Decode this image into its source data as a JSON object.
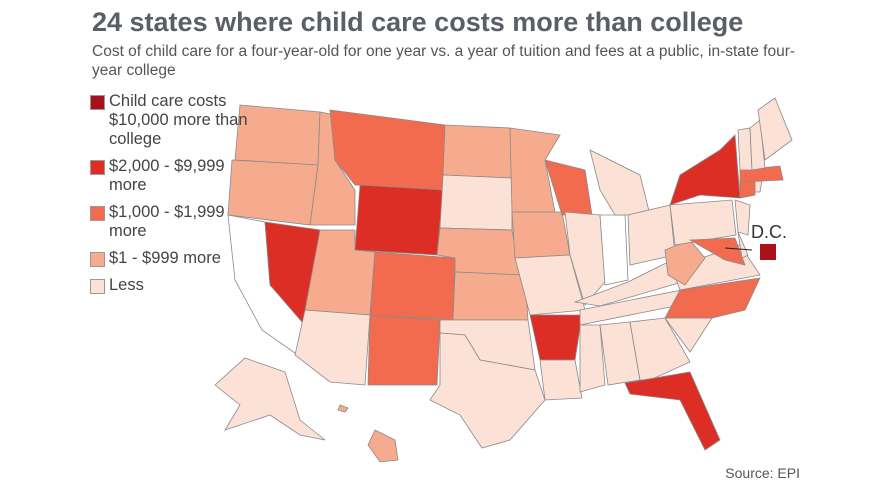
{
  "title": "24 states where child care costs more than college",
  "subtitle": "Cost of child care for a four-year-old for one year vs. a year of tuition and fees at a public, in-state four-year college",
  "legend": [
    {
      "id": "c4",
      "label": "Child care costs $10,000 more than college",
      "color": "#a8101a"
    },
    {
      "id": "c3",
      "label": "$2,000 - $9,999 more",
      "color": "#dd2e26"
    },
    {
      "id": "c2",
      "label": "$1,000 - $1,999 more",
      "color": "#f26b4f"
    },
    {
      "id": "c1",
      "label": "$1 - $999 more",
      "color": "#f6ab8e"
    },
    {
      "id": "c0",
      "label": "Less",
      "color": "#fce1d7"
    }
  ],
  "no_data_color": "#ffffff",
  "dc_label": "D.C.",
  "source": "Source: EPI",
  "states": {
    "DC": "c4",
    "NV": "c3",
    "WY": "c3",
    "NY": "c3",
    "AR": "c3",
    "FL": "c3",
    "MT": "c2",
    "CO": "c2",
    "NM": "c2",
    "WI": "c2",
    "NC": "c2",
    "MA": "c2",
    "CT": "c2",
    "MD": "c2",
    "WA": "c1",
    "OR": "c1",
    "ID": "c1",
    "UT": "c1",
    "ND": "c1",
    "MN": "c1",
    "NE": "c1",
    "KS": "c1",
    "IA": "c1",
    "WV": "c1",
    "HI": "c1",
    "AZ": "c0",
    "SD": "c0",
    "OK": "c0",
    "TX": "c0",
    "MO": "c0",
    "LA": "c0",
    "IL": "c0",
    "MI": "c0",
    "OH": "c0",
    "KY": "c0",
    "TN": "c0",
    "MS": "c0",
    "AL": "c0",
    "GA": "c0",
    "SC": "c0",
    "VA": "c0",
    "PA": "c0",
    "NJ": "c0",
    "DE": "c0",
    "RI": "c0",
    "VT": "c0",
    "NH": "c0",
    "ME": "c0",
    "AK": "c0",
    "CA": "none",
    "IN": "none"
  }
}
